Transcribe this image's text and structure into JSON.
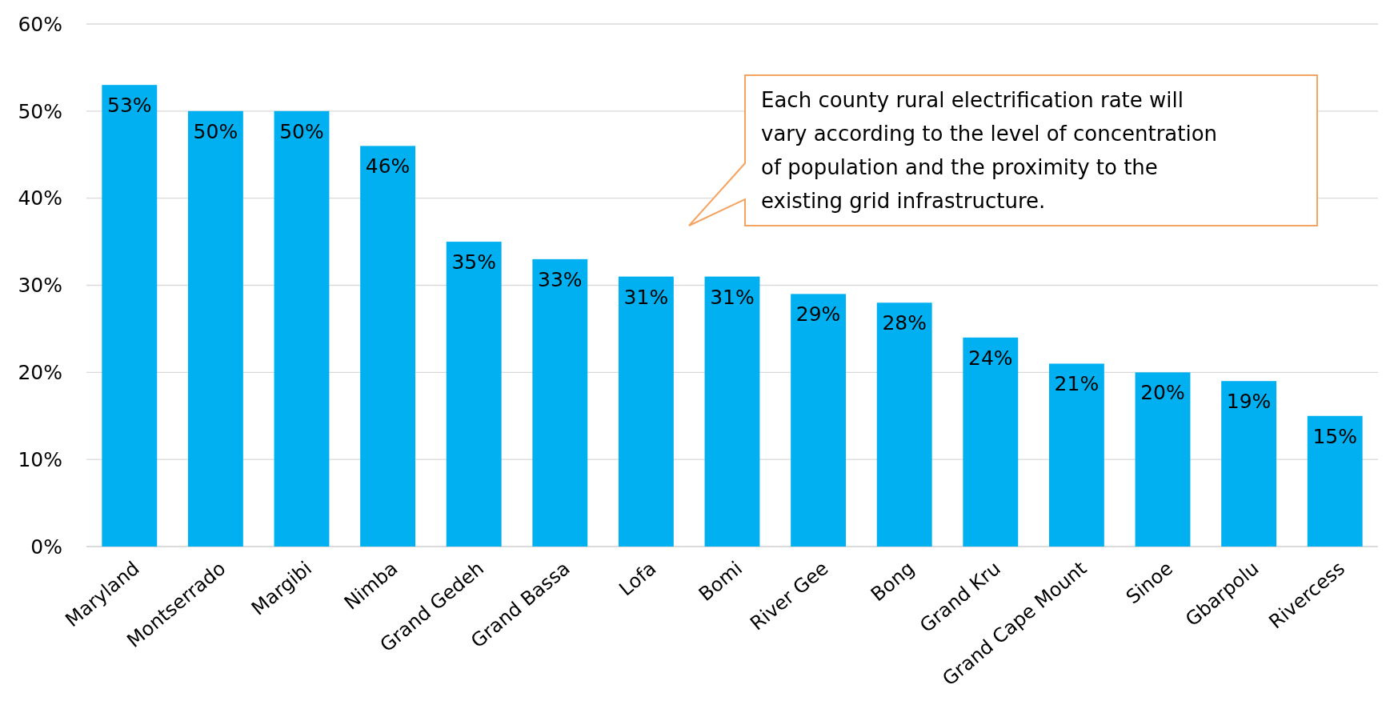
{
  "chart_data": {
    "type": "bar",
    "categories": [
      "Maryland",
      "Montserrado",
      "Margibi",
      "Nimba",
      "Grand Gedeh",
      "Grand Bassa",
      "Lofa",
      "Bomi",
      "River Gee",
      "Bong",
      "Grand Kru",
      "Grand Cape Mount",
      "Sinoe",
      "Gbarpolu",
      "Rivercess"
    ],
    "values": [
      53,
      50,
      50,
      46,
      35,
      33,
      31,
      31,
      29,
      28,
      24,
      21,
      20,
      19,
      15
    ],
    "value_labels": [
      "53%",
      "50%",
      "50%",
      "46%",
      "35%",
      "33%",
      "31%",
      "31%",
      "29%",
      "28%",
      "24%",
      "21%",
      "20%",
      "19%",
      "15%"
    ],
    "color": "#00b0f0",
    "ylim": [
      0,
      60
    ],
    "yticks": [
      {
        "value": 0,
        "label": "0%"
      },
      {
        "value": 10,
        "label": "10%"
      },
      {
        "value": 20,
        "label": "20%"
      },
      {
        "value": 30,
        "label": "30%"
      },
      {
        "value": 40,
        "label": "40%"
      },
      {
        "value": 50,
        "label": "50%"
      },
      {
        "value": 60,
        "label": "60%"
      }
    ],
    "grid": "y",
    "annotations": [
      "Each county rural electrification rate will vary according to the level of concentration of population and the proximity to the existing grid infrastructure."
    ]
  }
}
